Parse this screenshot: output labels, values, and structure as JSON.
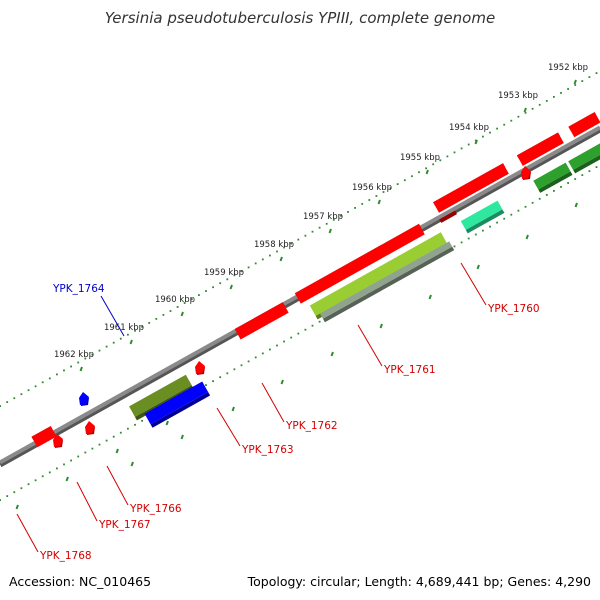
{
  "title": "Yersinia pseudotuberculosis YPIII, complete genome",
  "footer": {
    "accession": "Accession: NC_010465",
    "summary": "Topology: circular; Length: 4,689,441 bp; Genes: 4,290"
  },
  "colors": {
    "backbone": "#8a8a8a",
    "tick_marks": "#2e8b2e",
    "label_red": "#d40000",
    "label_blue": "#0000cc",
    "gene_red": "#ff0000",
    "gene_blue": "#0000ff",
    "gene_olive": "#6b8e23",
    "gene_lime": "#9acd32",
    "gene_green": "#2ea02e",
    "gene_spring": "#2ee8a0",
    "gene_gray": "#8fa38f"
  },
  "scale": {
    "unit": "kbp",
    "ticks": [
      {
        "label": "1952 kbp"
      },
      {
        "label": "1953 kbp"
      },
      {
        "label": "1954 kbp"
      },
      {
        "label": "1955 kbp"
      },
      {
        "label": "1956 kbp"
      },
      {
        "label": "1957 kbp"
      },
      {
        "label": "1958 kbp"
      },
      {
        "label": "1959 kbp"
      },
      {
        "label": "1960 kbp"
      },
      {
        "label": "1961 kbp"
      },
      {
        "label": "1962 kbp"
      }
    ]
  },
  "gene_labels": [
    {
      "text": "YPK_1760",
      "color": "#d40000"
    },
    {
      "text": "YPK_1761",
      "color": "#d40000"
    },
    {
      "text": "YPK_1762",
      "color": "#d40000"
    },
    {
      "text": "YPK_1763",
      "color": "#d40000"
    },
    {
      "text": "YPK_1764",
      "color": "#0000cc"
    },
    {
      "text": "YPK_1766",
      "color": "#d40000"
    },
    {
      "text": "YPK_1767",
      "color": "#d40000"
    },
    {
      "text": "YPK_1768",
      "color": "#d40000"
    }
  ]
}
